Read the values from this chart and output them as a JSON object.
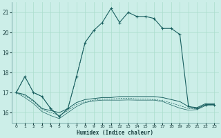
{
  "xlabel": "Humidex (Indice chaleur)",
  "bg_color": "#cceee8",
  "grid_color": "#aaddcc",
  "line_color": "#1a6060",
  "xlim": [
    -0.5,
    23.5
  ],
  "ylim": [
    15.5,
    21.5
  ],
  "yticks": [
    16,
    17,
    18,
    19,
    20,
    21
  ],
  "xticks": [
    0,
    1,
    2,
    3,
    4,
    5,
    6,
    7,
    8,
    9,
    10,
    11,
    12,
    13,
    14,
    15,
    16,
    17,
    18,
    19,
    20,
    21,
    22,
    23
  ],
  "series1_x": [
    0,
    1,
    2,
    3,
    4,
    5,
    6,
    7,
    8,
    9,
    10,
    11,
    12,
    13,
    14,
    15,
    16,
    17,
    18,
    19,
    20,
    21,
    22,
    23
  ],
  "series1_y": [
    17.0,
    17.8,
    17.0,
    16.8,
    16.2,
    15.8,
    16.2,
    17.8,
    19.5,
    20.1,
    20.5,
    21.2,
    20.5,
    21.0,
    20.8,
    20.8,
    20.7,
    20.2,
    20.2,
    19.9,
    16.3,
    16.2,
    16.4,
    16.4
  ],
  "series1_dot_end": 9,
  "series2_x": [
    0,
    1,
    2,
    3,
    4,
    5,
    6,
    7,
    8,
    9,
    10,
    11,
    12,
    13,
    14,
    15,
    16,
    17,
    18,
    19,
    20,
    21,
    22,
    23
  ],
  "series2_y": [
    17.0,
    16.9,
    16.6,
    16.2,
    16.1,
    16.0,
    16.2,
    16.5,
    16.65,
    16.7,
    16.75,
    16.75,
    16.8,
    16.8,
    16.8,
    16.8,
    16.8,
    16.75,
    16.65,
    16.55,
    16.3,
    16.25,
    16.45,
    16.45
  ],
  "series3_x": [
    0,
    1,
    2,
    3,
    4,
    5,
    6,
    7,
    8,
    9,
    10,
    11,
    12,
    13,
    14,
    15,
    16,
    17,
    18,
    19,
    20,
    21,
    22,
    23
  ],
  "series3_y": [
    17.0,
    16.85,
    16.55,
    16.15,
    16.0,
    15.85,
    16.1,
    16.4,
    16.55,
    16.62,
    16.68,
    16.68,
    16.7,
    16.72,
    16.68,
    16.68,
    16.65,
    16.6,
    16.48,
    16.35,
    16.2,
    16.18,
    16.38,
    16.4
  ],
  "series4_x": [
    0,
    1,
    2,
    3,
    4,
    5,
    6,
    7,
    8,
    9,
    10,
    11,
    12,
    13,
    14,
    15,
    16,
    17,
    18,
    19,
    20,
    21,
    22,
    23
  ],
  "series4_y": [
    17.0,
    16.75,
    16.45,
    16.05,
    15.85,
    15.7,
    16.0,
    16.3,
    16.5,
    16.58,
    16.62,
    16.62,
    16.62,
    16.63,
    16.62,
    16.62,
    16.62,
    16.55,
    16.38,
    16.22,
    16.12,
    16.15,
    16.35,
    16.38
  ]
}
